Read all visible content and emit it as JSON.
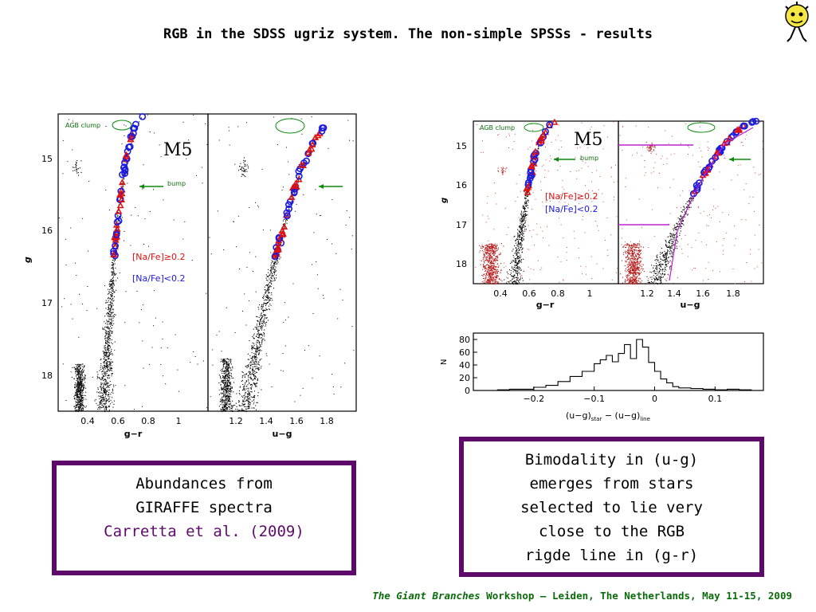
{
  "slide": {
    "title": "RGB in the SDSS ugriz system. The non-simple SPSSs - results"
  },
  "left_figure": {
    "cluster_label": "M5",
    "agb_label": "AGB clump",
    "bump_label": "bump",
    "legend_high": "[Na/Fe]≥0.2",
    "legend_low": "[Na/Fe]<0.2",
    "ylabel": "g",
    "y_ticks": [
      "15",
      "16",
      "17",
      "18"
    ],
    "panel1_xlabel": "g−r",
    "panel1_x_ticks": [
      "0.4",
      "0.6",
      "0.8",
      "1"
    ],
    "panel2_xlabel": "u−g",
    "panel2_x_ticks": [
      "1.2",
      "1.4",
      "1.6",
      "1.8"
    ]
  },
  "right_figure": {
    "cluster_label": "M5",
    "agb_label": "AGB clump",
    "bump_label": "bump",
    "legend_high": "[Na/Fe]≥0.2",
    "legend_low": "[Na/Fe]<0.2",
    "ylabel": "g",
    "y_ticks": [
      "15",
      "16",
      "17",
      "18"
    ],
    "panel1_xlabel": "g−r",
    "panel1_x_ticks": [
      "0.4",
      "0.6",
      "0.8",
      "1"
    ],
    "panel2_xlabel": "u−g",
    "panel2_x_ticks": [
      "1.2",
      "1.4",
      "1.6",
      "1.8"
    ]
  },
  "histogram": {
    "ylabel": "N",
    "y_ticks": [
      "0",
      "20",
      "40",
      "60",
      "80"
    ],
    "x_ticks": [
      "−0.2",
      "−0.1",
      "0",
      "0.1"
    ],
    "xlabel_main": "(u−g)",
    "xlabel_sub1": "star",
    "xlabel_mid": " − (u−g)",
    "xlabel_sub2": "line"
  },
  "chart_data": {
    "type": "bar",
    "x": [
      -0.28,
      -0.26,
      -0.24,
      -0.22,
      -0.2,
      -0.18,
      -0.16,
      -0.14,
      -0.12,
      -0.1,
      -0.09,
      -0.08,
      -0.07,
      -0.06,
      -0.05,
      -0.04,
      -0.03,
      -0.02,
      -0.01,
      0.0,
      0.01,
      0.02,
      0.03,
      0.04,
      0.06,
      0.08,
      0.1,
      0.12,
      0.14,
      0.16
    ],
    "values": [
      0,
      1,
      2,
      2,
      5,
      8,
      14,
      22,
      30,
      42,
      48,
      55,
      45,
      58,
      72,
      50,
      80,
      68,
      44,
      30,
      18,
      12,
      6,
      4,
      3,
      2,
      1,
      2,
      1,
      0
    ],
    "xlim": [
      -0.3,
      0.18
    ],
    "ylim": [
      0,
      90
    ],
    "ylabel": "N",
    "xlabel": "(u−g)star − (u−g)line"
  },
  "text_boxes": {
    "left_line1": "Abundances from",
    "left_line2": "GIRAFFE spectra",
    "left_line3": "Carretta et al. (2009)",
    "right_line1": "Bimodality in (u-g)",
    "right_line2": "emerges from stars",
    "right_line3": "selected to lie very",
    "right_line4": "close to the RGB",
    "right_line5": "rigde line in (g-r)"
  },
  "footer": {
    "italic_part": "The Giant Branches",
    "rest": " Workshop – Leiden, The Netherlands, May 11-15, 2009"
  },
  "colors": {
    "accent_purple": "#5e0a6b",
    "footer_green": "#0b6b0b",
    "na_rich_red": "#e01010",
    "na_poor_blue": "#1a1ae0",
    "ridge_magenta": "#c020d0"
  }
}
